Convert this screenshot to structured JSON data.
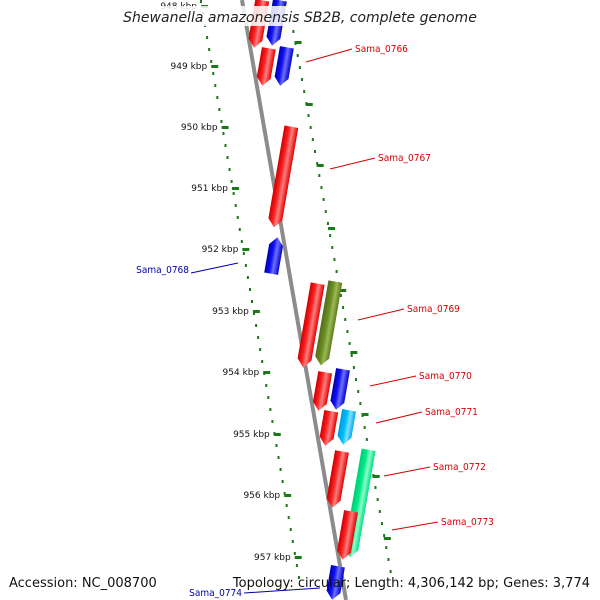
{
  "title": "Shewanella amazonensis SB2B, complete genome",
  "accession": "Accession: NC_008700",
  "topology": "Topology: circular; Length: 4,306,142 bp; Genes: 3,774",
  "colors": {
    "backbone": "#8c8c8c",
    "tick": "#1a7a1a",
    "label_red": "#d40000",
    "label_blue": "#0000aa",
    "red": "#ff0000",
    "blue": "#0000ee",
    "olive": "#6b8e23",
    "cyan": "#00bfff",
    "spring": "#00ee88"
  },
  "kbp_ticks": [
    "948 kbp",
    "949 kbp",
    "950 kbp",
    "951 kbp",
    "952 kbp",
    "953 kbp",
    "954 kbp",
    "955 kbp",
    "956 kbp",
    "957 kbp"
  ],
  "gene_labels": [
    {
      "text": "Sama_0766",
      "color": "red"
    },
    {
      "text": "Sama_0767",
      "color": "red"
    },
    {
      "text": "Sama_0768",
      "color": "blue"
    },
    {
      "text": "Sama_0769",
      "color": "red"
    },
    {
      "text": "Sama_0770",
      "color": "red"
    },
    {
      "text": "Sama_0771",
      "color": "red"
    },
    {
      "text": "Sama_0772",
      "color": "red"
    },
    {
      "text": "Sama_0773",
      "color": "red"
    },
    {
      "text": "Sama_0774",
      "color": "blue"
    }
  ]
}
